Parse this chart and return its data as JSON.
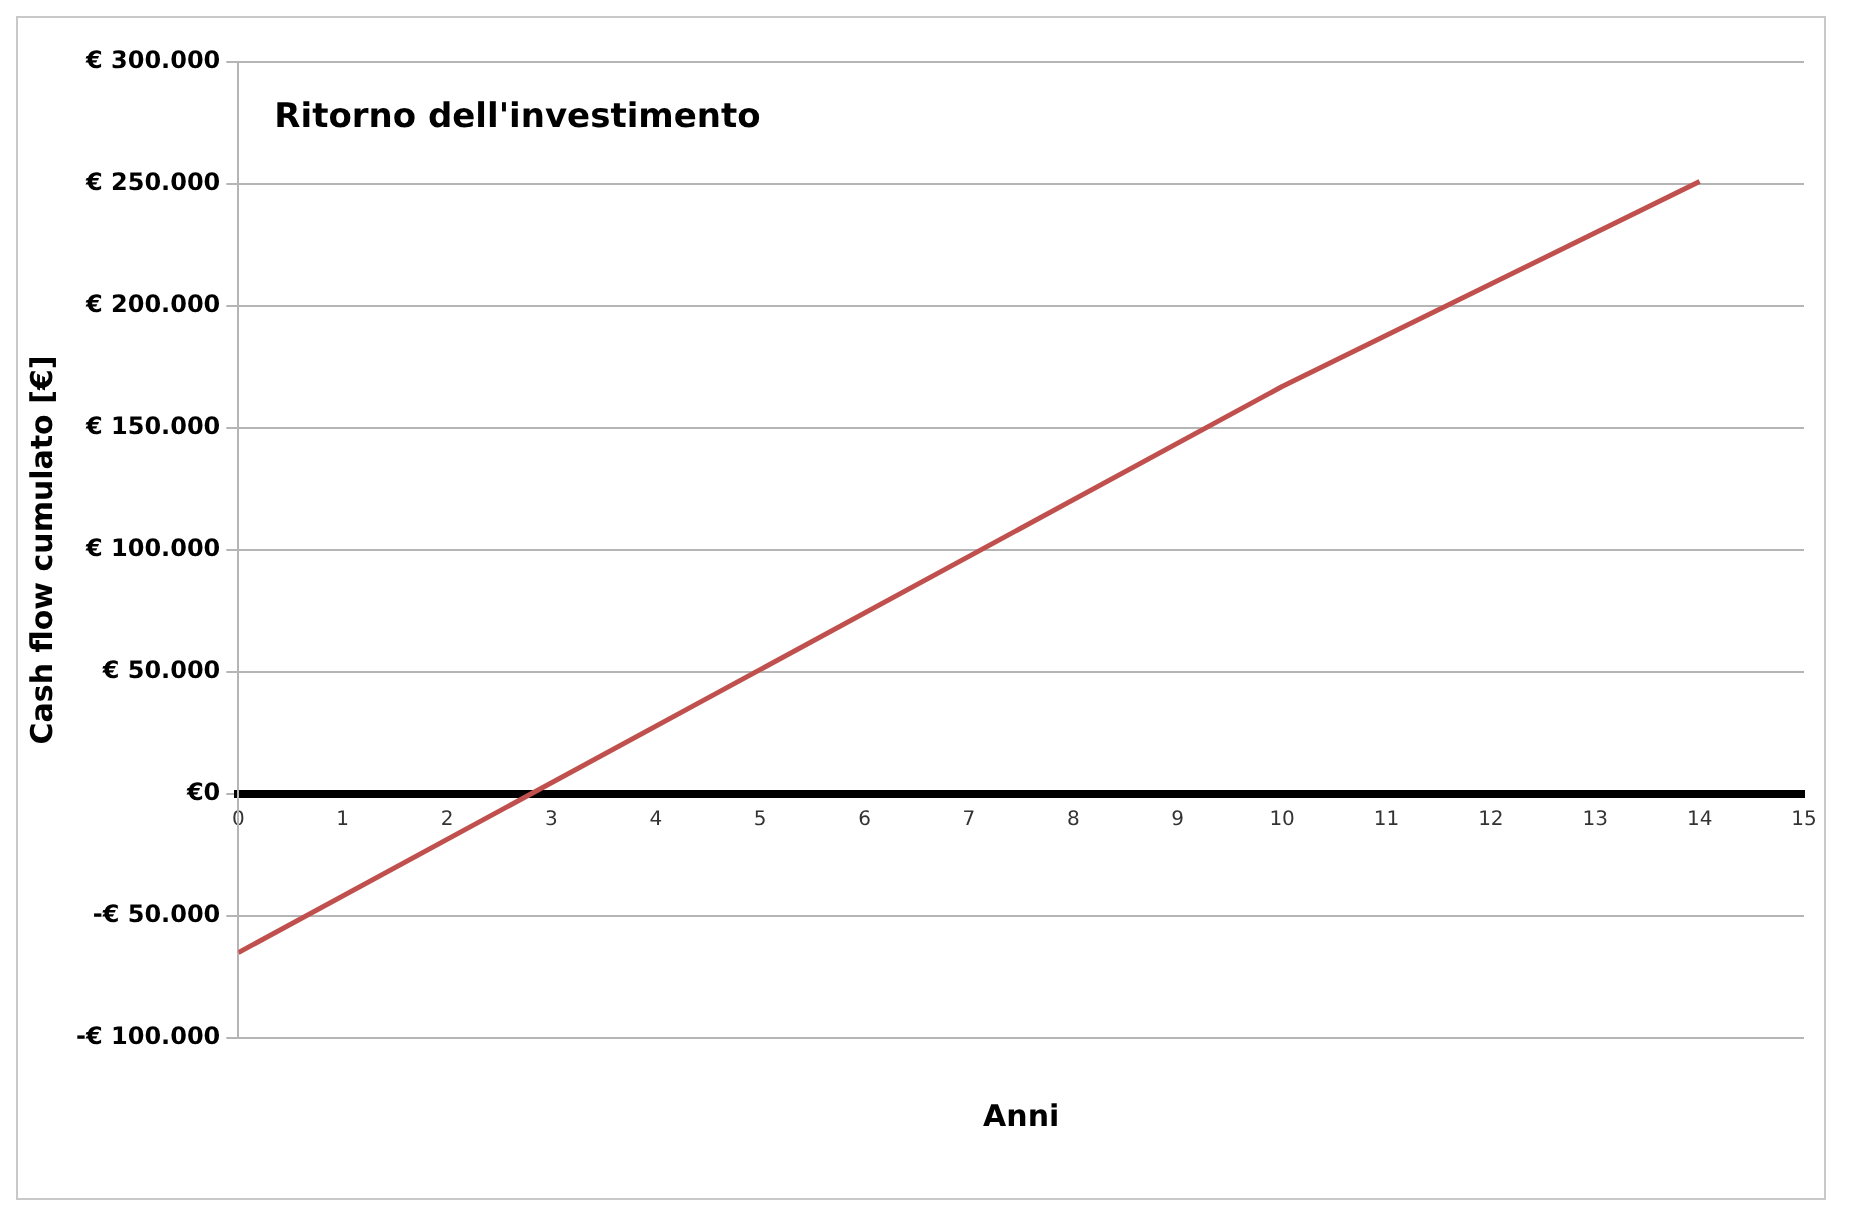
{
  "chart_data": {
    "type": "line",
    "title": "Ritorno dell'investimento",
    "xlabel": "Anni",
    "ylabel": "Cash flow cumulato [€]",
    "x": [
      0,
      10,
      14
    ],
    "series": [
      {
        "color": "#c0504d",
        "values": [
          -65000,
          167000,
          251000
        ]
      }
    ],
    "xlim": [
      0,
      15
    ],
    "xticks": [
      0,
      1,
      2,
      3,
      4,
      5,
      6,
      7,
      8,
      9,
      10,
      11,
      12,
      13,
      14,
      15
    ],
    "ylim": [
      -100000,
      300000
    ],
    "yticks": [
      {
        "value": -100000,
        "label": "-€ 100.000"
      },
      {
        "value": -50000,
        "label": "-€ 50.000"
      },
      {
        "value": 0,
        "label": "€0"
      },
      {
        "value": 50000,
        "label": "€ 50.000"
      },
      {
        "value": 100000,
        "label": "€ 100.000"
      },
      {
        "value": 150000,
        "label": "€ 150.000"
      },
      {
        "value": 200000,
        "label": "€ 200.000"
      },
      {
        "value": 250000,
        "label": "€ 250.000"
      },
      {
        "value": 300000,
        "label": "€ 300.000"
      }
    ],
    "grid": "y",
    "marker": "none",
    "line_style": "solid"
  }
}
